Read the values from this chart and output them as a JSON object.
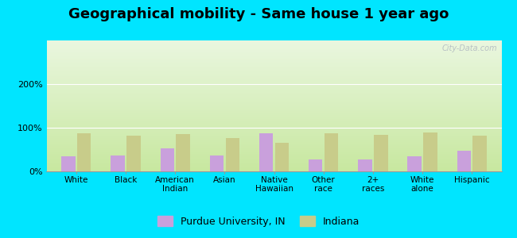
{
  "title": "Geographical mobility - Same house 1 year ago",
  "categories": [
    "White",
    "Black",
    "American\nIndian",
    "Asian",
    "Native\nHawaiian",
    "Other\nrace",
    "2+\nraces",
    "White\nalone",
    "Hispanic"
  ],
  "purdue_values": [
    35,
    37,
    52,
    37,
    88,
    28,
    27,
    35,
    47
  ],
  "indiana_values": [
    88,
    82,
    85,
    77,
    65,
    87,
    84,
    89,
    81
  ],
  "purdue_color": "#c9a0dc",
  "indiana_color": "#c8cc8a",
  "background_outer": "#00e5ff",
  "ylim": [
    0,
    300
  ],
  "yticks": [
    0,
    100,
    200
  ],
  "ytick_labels": [
    "0%",
    "100%",
    "200%"
  ],
  "title_fontsize": 13,
  "legend_purdue": "Purdue University, IN",
  "legend_indiana": "Indiana",
  "watermark": "City-Data.com"
}
